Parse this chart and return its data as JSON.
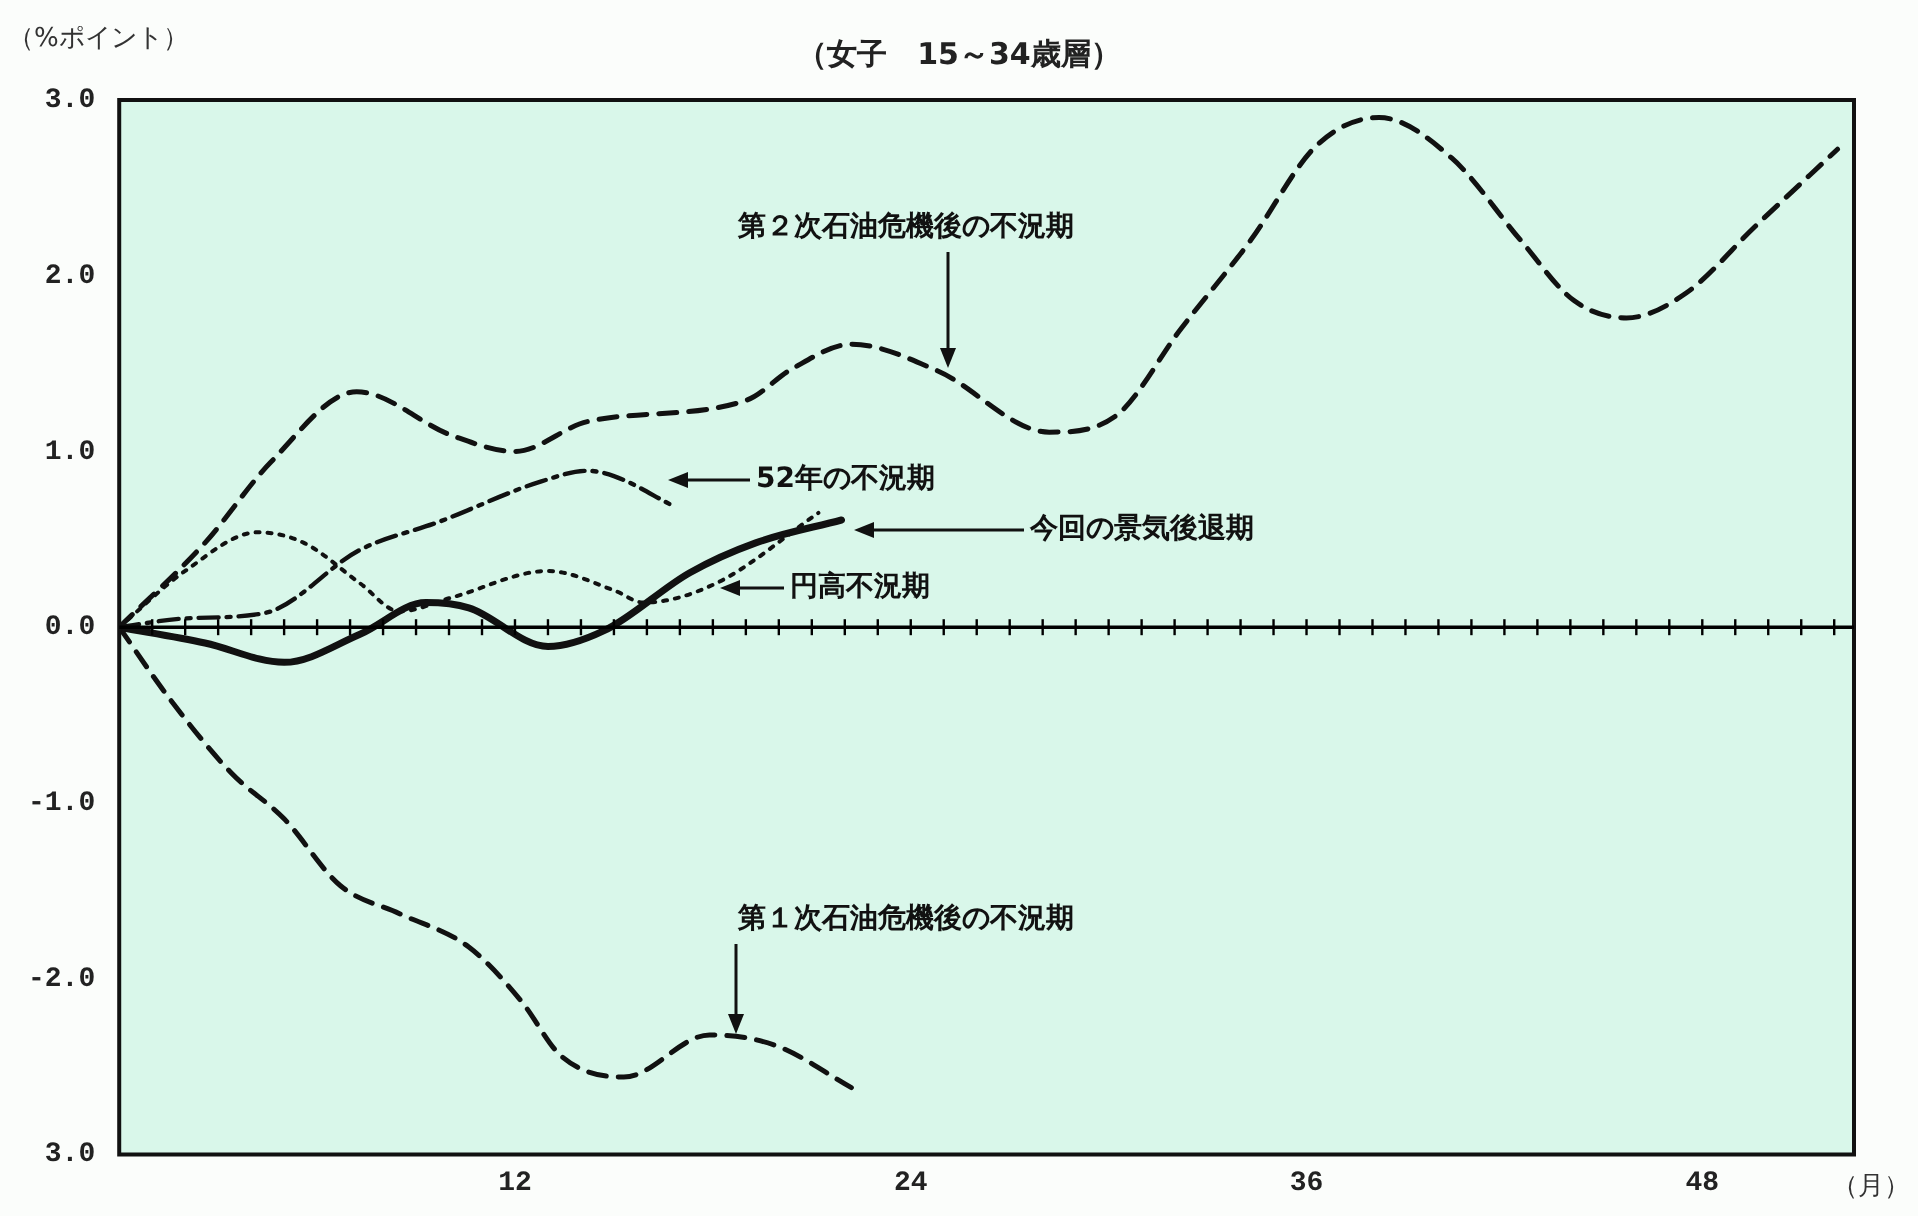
{
  "chart_data": {
    "type": "line",
    "title": "（女子　15～34歳層）",
    "ylabel": "（%ポイント）",
    "xlabel": "（月）",
    "xlim": [
      0,
      52.6
    ],
    "ylim": [
      -3,
      3
    ],
    "xticks": [
      {
        "value": 1,
        "label": null
      },
      {
        "value": 2,
        "label": null
      },
      {
        "value": 3,
        "label": null
      },
      {
        "value": 4,
        "label": null
      },
      {
        "value": 5,
        "label": null
      },
      {
        "value": 6,
        "label": null
      },
      {
        "value": 7,
        "label": null
      },
      {
        "value": 8,
        "label": null
      },
      {
        "value": 9,
        "label": null
      },
      {
        "value": 10,
        "label": null
      },
      {
        "value": 11,
        "label": null
      },
      12,
      {
        "value": 13,
        "label": null
      },
      {
        "value": 14,
        "label": null
      },
      {
        "value": 15,
        "label": null
      },
      {
        "value": 16,
        "label": null
      },
      {
        "value": 17,
        "label": null
      },
      {
        "value": 18,
        "label": null
      },
      {
        "value": 19,
        "label": null
      },
      {
        "value": 20,
        "label": null
      },
      {
        "value": 21,
        "label": null
      },
      {
        "value": 22,
        "label": null
      },
      {
        "value": 23,
        "label": null
      },
      24,
      {
        "value": 25,
        "label": null
      },
      {
        "value": 26,
        "label": null
      },
      {
        "value": 27,
        "label": null
      },
      {
        "value": 28,
        "label": null
      },
      {
        "value": 29,
        "label": null
      },
      {
        "value": 30,
        "label": null
      },
      {
        "value": 31,
        "label": null
      },
      {
        "value": 32,
        "label": null
      },
      {
        "value": 33,
        "label": null
      },
      {
        "value": 34,
        "label": null
      },
      {
        "value": 35,
        "label": null
      },
      36,
      {
        "value": 37,
        "label": null
      },
      {
        "value": 38,
        "label": null
      },
      {
        "value": 39,
        "label": null
      },
      {
        "value": 40,
        "label": null
      },
      {
        "value": 41,
        "label": null
      },
      {
        "value": 42,
        "label": null
      },
      {
        "value": 43,
        "label": null
      },
      {
        "value": 44,
        "label": null
      },
      {
        "value": 45,
        "label": null
      },
      {
        "value": 46,
        "label": null
      },
      {
        "value": 47,
        "label": null
      },
      48,
      {
        "value": 49,
        "label": null
      },
      {
        "value": 50,
        "label": null
      },
      {
        "value": 51,
        "label": null
      },
      {
        "value": 52,
        "label": null
      }
    ],
    "yticks": [
      {
        "value": 3,
        "label": "3.0"
      },
      {
        "value": 2,
        "label": "2.0"
      },
      {
        "value": 1,
        "label": "1.0"
      },
      {
        "value": 0,
        "label": "0.0"
      },
      {
        "value": -1,
        "label": "-1.0"
      },
      {
        "value": -2,
        "label": "-2.0"
      },
      {
        "value": -3,
        "label": "3.0"
      }
    ],
    "grid": false,
    "legend": false,
    "marker": "none",
    "ref_lines": [
      {
        "axis": "y",
        "value": 0,
        "color": "#000000"
      }
    ],
    "series": [
      {
        "color": "#111111",
        "line_style": "dashed",
        "x": [
          0,
          2.6,
          4.6,
          7.2,
          10.1,
          12,
          14.2,
          19,
          20.4,
          22.2,
          24.8,
          28.2,
          30.2,
          32.2,
          34.3,
          36.3,
          38.2,
          40.4,
          42.5,
          44.1,
          45.7,
          47.5,
          49.6,
          52.1
        ],
        "values": [
          0,
          0.48,
          0.94,
          1.34,
          1.09,
          1.0,
          1.17,
          1.29,
          1.47,
          1.61,
          1.46,
          1.11,
          1.2,
          1.7,
          2.2,
          2.74,
          2.9,
          2.67,
          2.2,
          1.86,
          1.76,
          1.9,
          2.28,
          2.72
        ]
      },
      {
        "color": "#111111",
        "line_style": "dashdot",
        "x": [
          0,
          2,
          4.4,
          7.3,
          9.7,
          12.8,
          14.2,
          15,
          16.8
        ],
        "values": [
          0,
          0.05,
          0.08,
          0.44,
          0.6,
          0.83,
          0.89,
          0.86,
          0.69
        ]
      },
      {
        "color": "#111111",
        "line_style": "solid",
        "x": [
          0,
          2.6,
          5,
          7.3,
          9.3,
          10.6,
          13,
          14.7,
          17.3,
          19.3,
          21.9
        ],
        "values": [
          0,
          -0.09,
          -0.2,
          -0.04,
          0.14,
          0.11,
          -0.11,
          -0.02,
          0.31,
          0.48,
          0.61
        ]
      },
      {
        "color": "#111111",
        "line_style": "dotted",
        "x": [
          0,
          2,
          4.2,
          5.6,
          7.3,
          8.5,
          10.1,
          13,
          15,
          15.9,
          18.1,
          21.2
        ],
        "values": [
          0,
          0.32,
          0.54,
          0.48,
          0.25,
          0.09,
          0.17,
          0.32,
          0.21,
          0.14,
          0.25,
          0.65
        ]
      },
      {
        "color": "#111111",
        "line_style": "dashed",
        "x": [
          0,
          1.5,
          3.4,
          5,
          6.7,
          8.5,
          10.6,
          12.2,
          13.4,
          15.3,
          17.9,
          19.9,
          22.2
        ],
        "values": [
          0,
          -0.4,
          -0.83,
          -1.09,
          -1.47,
          -1.63,
          -1.82,
          -2.13,
          -2.44,
          -2.56,
          -2.32,
          -2.38,
          -2.62
        ]
      }
    ],
    "annotations": [
      "第２次石油危機後の不況期",
      "52年の不況期",
      "今回の景気後退期",
      "円高不況期",
      "第１次石油危機後の不況期"
    ]
  }
}
